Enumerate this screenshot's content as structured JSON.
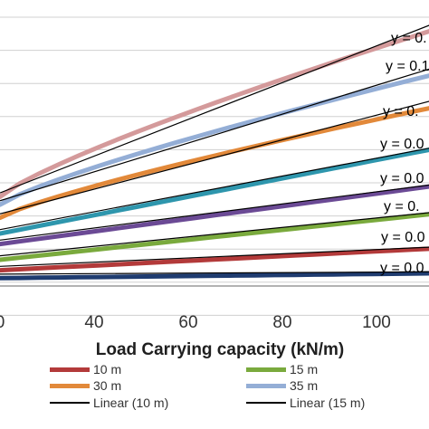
{
  "chart_data": {
    "type": "line",
    "title": "",
    "xlabel": "Load Carrying capacity (kN/m)",
    "ylabel": "",
    "x_ticks": [
      "0",
      "40",
      "60",
      "80",
      "100"
    ],
    "xlim": [
      20,
      120
    ],
    "ylim": [
      0,
      10
    ],
    "grid": true,
    "legend_position": "bottom",
    "series": [
      {
        "name": "10 m",
        "color": "#b33a3a",
        "x": [
          20,
          120
        ],
        "y": [
          0.6,
          1.5
        ]
      },
      {
        "name": "15 m",
        "color": "#7aaa3d",
        "x": [
          20,
          120
        ],
        "y": [
          1.0,
          2.9
        ]
      },
      {
        "name": "30 m",
        "color": "#e2893a",
        "x": [
          20,
          120
        ],
        "y": [
          2.6,
          7.1
        ],
        "curved": true
      },
      {
        "name": "35 m",
        "color": "#94aed6",
        "x": [
          20,
          120
        ],
        "y": [
          3.1,
          8.4
        ],
        "curved": true
      },
      {
        "name": "",
        "color": "#1f3c70",
        "x": [
          20,
          120
        ],
        "y": [
          0.3,
          0.5
        ]
      },
      {
        "name": "",
        "color": "#6b4a95",
        "x": [
          20,
          120
        ],
        "y": [
          1.6,
          4.0
        ]
      },
      {
        "name": "",
        "color": "#2e96ad",
        "x": [
          20,
          120
        ],
        "y": [
          2.0,
          5.5
        ]
      },
      {
        "name": "",
        "color": "#d49a9b",
        "x": [
          20,
          120
        ],
        "y": [
          3.4,
          10.2
        ],
        "curved": true
      }
    ],
    "linear_fits": [
      {
        "name": "Linear (10 m)",
        "color": "#000000"
      },
      {
        "name": "Linear (15 m)",
        "color": "#000000"
      }
    ],
    "equation_labels": [
      "y = 0.",
      "y = 0.1",
      "y = 0.",
      "y = 0.0",
      "y = 0.0",
      "y = 0.",
      "y = 0.0",
      "y = 0.0"
    ],
    "legend": [
      {
        "label": "10 m",
        "color": "#b33a3a",
        "thick": true
      },
      {
        "label": "15 m",
        "color": "#7aaa3d",
        "thick": true
      },
      {
        "label": "30 m",
        "color": "#e2893a",
        "thick": true
      },
      {
        "label": "35 m",
        "color": "#94aed6",
        "thick": true
      },
      {
        "label": "Linear (10 m)",
        "color": "#000000",
        "thick": false
      },
      {
        "label": "Linear (15 m)",
        "color": "#000000",
        "thick": false
      }
    ]
  }
}
